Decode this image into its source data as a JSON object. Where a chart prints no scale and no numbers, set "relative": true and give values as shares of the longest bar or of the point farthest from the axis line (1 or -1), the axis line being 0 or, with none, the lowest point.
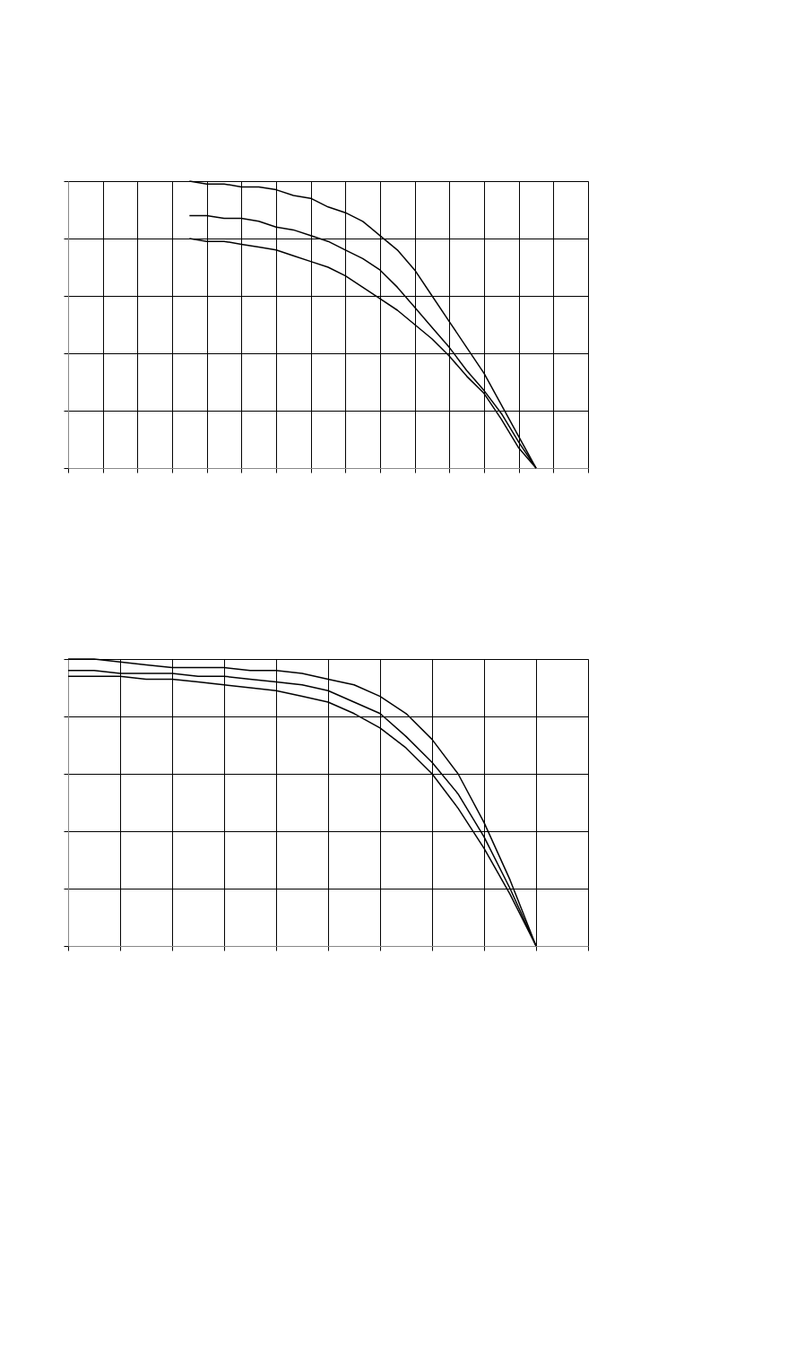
{
  "chart_data": [
    {
      "type": "line",
      "relative": true,
      "grid": true,
      "tick_labels": false,
      "categories": [
        null,
        null,
        null,
        null,
        null,
        null,
        null,
        null,
        null,
        null,
        null,
        null,
        null,
        null,
        null,
        null,
        null,
        null,
        null,
        null,
        null,
        null,
        null,
        null,
        null,
        null,
        null,
        null,
        null,
        null,
        null
      ],
      "series": [
        {
          "color": "#000000",
          "values": [
            null,
            null,
            null,
            null,
            null,
            null,
            null,
            1,
            0.99,
            0.99,
            0.98,
            0.98,
            0.97,
            0.95,
            0.94,
            0.91,
            0.89,
            0.86,
            0.81,
            0.76,
            0.69,
            0.6,
            0.51,
            0.42,
            0.33,
            0.22,
            0.11,
            0,
            null,
            null,
            null
          ]
        },
        {
          "color": "#000000",
          "values": [
            null,
            null,
            null,
            null,
            null,
            null,
            null,
            0.88,
            0.88,
            0.87,
            0.87,
            0.86,
            0.84,
            0.83,
            0.81,
            0.79,
            0.76,
            0.73,
            0.69,
            0.63,
            0.56,
            0.49,
            0.42,
            0.34,
            0.27,
            0.19,
            0.09,
            0,
            null,
            null,
            null
          ]
        },
        {
          "color": "#000000",
          "values": [
            null,
            null,
            null,
            null,
            null,
            null,
            null,
            0.8,
            0.79,
            0.79,
            0.78,
            0.77,
            0.76,
            0.74,
            0.72,
            0.7,
            0.67,
            0.63,
            0.59,
            0.55,
            0.5,
            0.45,
            0.39,
            0.32,
            0.26,
            0.17,
            0.07,
            0,
            null,
            null,
            null
          ]
        }
      ]
    },
    {
      "type": "line",
      "relative": true,
      "grid": true,
      "tick_labels": false,
      "categories": [
        null,
        null,
        null,
        null,
        null,
        null,
        null,
        null,
        null,
        null,
        null,
        null,
        null,
        null,
        null,
        null,
        null,
        null,
        null,
        null,
        null
      ],
      "series": [
        {
          "color": "#000000",
          "values": [
            1,
            1.0,
            0.99,
            0.98,
            0.97,
            0.97,
            0.97,
            0.96,
            0.96,
            0.95,
            0.93,
            0.91,
            0.87,
            0.81,
            0.72,
            0.6,
            0.43,
            0.23,
            0,
            null,
            null
          ]
        },
        {
          "color": "#000000",
          "values": [
            0.96,
            0.96,
            0.95,
            0.95,
            0.95,
            0.94,
            0.94,
            0.93,
            0.92,
            0.91,
            0.89,
            0.85,
            0.81,
            0.73,
            0.64,
            0.53,
            0.38,
            0.2,
            0,
            null,
            null
          ]
        },
        {
          "color": "#000000",
          "values": [
            0.94,
            0.94,
            0.94,
            0.93,
            0.93,
            0.92,
            0.91,
            0.9,
            0.89,
            0.87,
            0.85,
            0.81,
            0.76,
            0.69,
            0.6,
            0.48,
            0.34,
            0.18,
            0,
            null,
            null
          ]
        }
      ]
    }
  ]
}
